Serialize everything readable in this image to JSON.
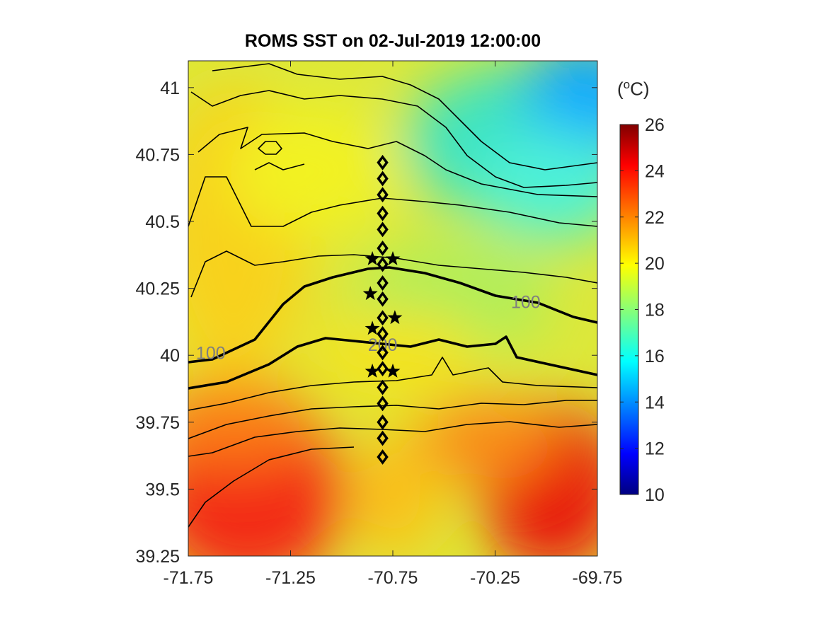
{
  "title": "ROMS SST on 02-Jul-2019 12:00:00",
  "colorbar": {
    "unit_prefix": "(",
    "unit_sup": "o",
    "unit_suffix": "C)",
    "ticks": [
      "10",
      "12",
      "14",
      "16",
      "18",
      "20",
      "22",
      "24",
      "26"
    ],
    "range": [
      10,
      26
    ],
    "colormap": "jet"
  },
  "chart_data": {
    "type": "heatmap",
    "title": "ROMS SST on 02-Jul-2019 12:00:00",
    "xlabel": "",
    "ylabel": "",
    "xlim": [
      -71.75,
      -69.75
    ],
    "ylim": [
      39.25,
      41.1
    ],
    "x_ticks": [
      "-71.75",
      "-71.25",
      "-70.75",
      "-70.25",
      "-69.75"
    ],
    "y_ticks": [
      "39.25",
      "39.5",
      "39.75",
      "40",
      "40.25",
      "40.5",
      "40.75",
      "41"
    ],
    "color_variable": "SST",
    "color_range": [
      10,
      26
    ],
    "contour_labels": [
      {
        "text": "100",
        "x": -71.64,
        "y": 40.01
      },
      {
        "text": "200",
        "x": -70.8,
        "y": 40.04
      },
      {
        "text": "100",
        "x": -70.1,
        "y": 40.2
      }
    ],
    "diamonds": {
      "x": -70.8,
      "y": [
        40.72,
        40.66,
        40.6,
        40.53,
        40.47,
        40.4,
        40.34,
        40.27,
        40.21,
        40.14,
        40.08,
        40.01,
        39.95,
        39.88,
        39.82,
        39.75,
        39.69,
        39.62
      ]
    },
    "stars": [
      {
        "x": -70.85,
        "y": 40.36
      },
      {
        "x": -70.75,
        "y": 40.36
      },
      {
        "x": -70.86,
        "y": 40.23
      },
      {
        "x": -70.74,
        "y": 40.14
      },
      {
        "x": -70.85,
        "y": 40.1
      },
      {
        "x": -70.85,
        "y": 39.94
      },
      {
        "x": -70.75,
        "y": 39.94
      }
    ]
  }
}
